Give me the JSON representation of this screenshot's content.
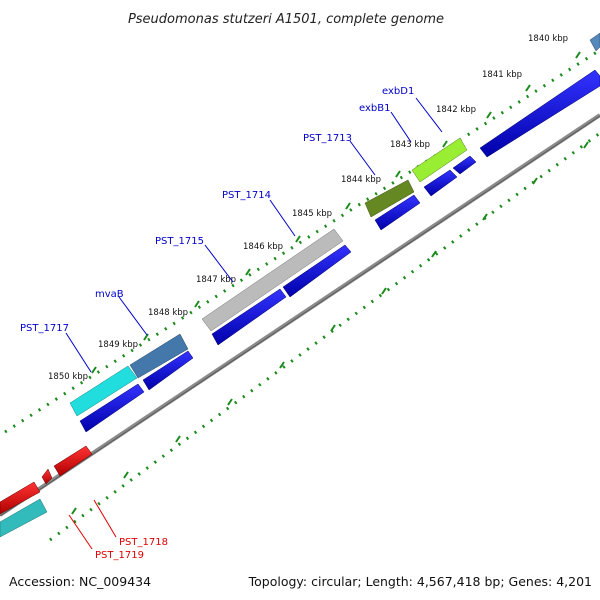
{
  "title": "Pseudomonas stutzeri A1501, complete genome",
  "footer": {
    "accession": "Accession: NC_009434",
    "summary": "Topology: circular; Length: 4,567,418 bp; Genes: 4,201"
  },
  "kbp_ticks": [
    {
      "label": "1840 kbp"
    },
    {
      "label": "1841 kbp"
    },
    {
      "label": "1842 kbp"
    },
    {
      "label": "1843 kbp"
    },
    {
      "label": "1844 kbp"
    },
    {
      "label": "1845 kbp"
    },
    {
      "label": "1846 kbp"
    },
    {
      "label": "1847 kbp"
    },
    {
      "label": "1848 kbp"
    },
    {
      "label": "1849 kbp"
    },
    {
      "label": "1850 kbp"
    }
  ],
  "gene_labels": [
    {
      "label": "exbD1",
      "color": "#0000cc"
    },
    {
      "label": "exbB1",
      "color": "#0000cc"
    },
    {
      "label": "PST_1713",
      "color": "#0000cc"
    },
    {
      "label": "PST_1714",
      "color": "#0000cc"
    },
    {
      "label": "PST_1715",
      "color": "#0000cc"
    },
    {
      "label": "mvaB",
      "color": "#0000cc"
    },
    {
      "label": "PST_1717",
      "color": "#0000cc"
    },
    {
      "label": "PST_1718",
      "color": "#e00000"
    },
    {
      "label": "PST_1719",
      "color": "#e00000"
    }
  ],
  "colors": {
    "backbone": "#8a8a8a",
    "cds_forward": "#0000dd",
    "cds_reverse": "#e00000",
    "tick_green": "#1a8a1a",
    "exbD1": "#99ee33",
    "PST_1713": "#668822",
    "PST_1714": "#bbbbbb",
    "mvaB": "#4477aa",
    "PST_1717": "#22dddd",
    "PST_1718": "#e00000",
    "PST_1719": "#33bbbb"
  }
}
